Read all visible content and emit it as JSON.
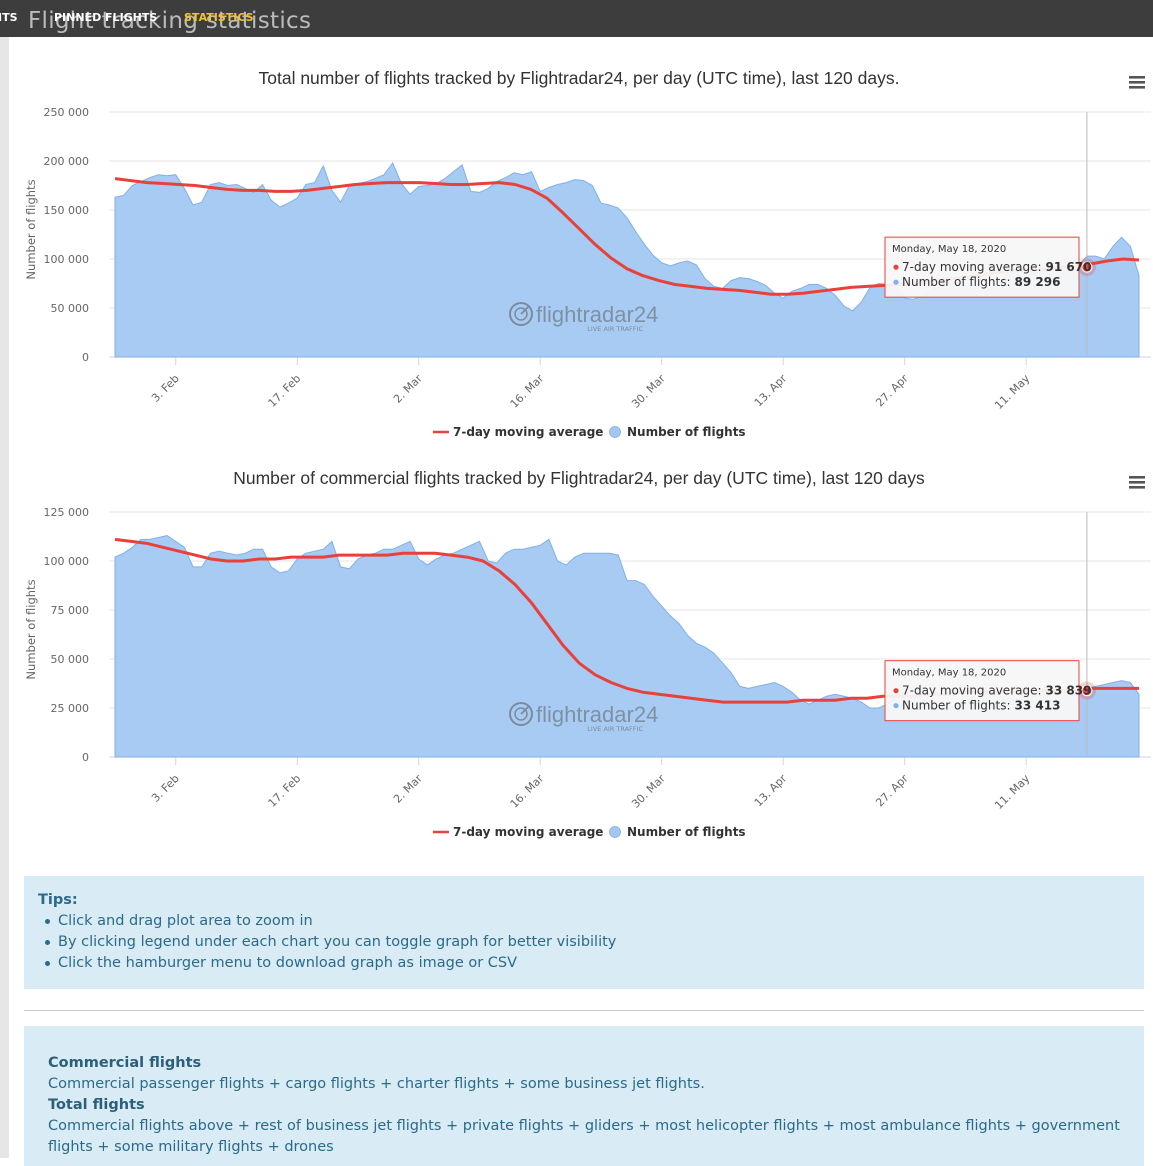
{
  "nav": {
    "left_cut": "ITS",
    "pinned": "PINNED FLIGHTS",
    "statistics": "STATISTICS"
  },
  "page_title": "Flight tracking statistics",
  "watermark": {
    "brand": "flightradar24",
    "tagline": "LIVE AIR TRAFFIC"
  },
  "chart_data": [
    {
      "type": "area",
      "title": "Total number of flights tracked by Flightradar24, per day (UTC time), last 120 days.",
      "ylabel": "Number of flights",
      "ylim": [
        0,
        250000
      ],
      "yticks": [
        0,
        50000,
        100000,
        150000,
        200000,
        250000
      ],
      "ytick_labels": [
        "0",
        "50 000",
        "100 000",
        "150 000",
        "200 000",
        "250 000"
      ],
      "x_range_days": [
        0,
        118
      ],
      "xtick_days": [
        7,
        21,
        35,
        49,
        63,
        77,
        91,
        105
      ],
      "xtick_labels": [
        "3. Feb",
        "17. Feb",
        "2. Mar",
        "16. Mar",
        "30. Mar",
        "13. Apr",
        "27. Apr",
        "11. May"
      ],
      "legend": [
        "7-day moving average",
        "Number of flights"
      ],
      "legend_position": "bottom-center",
      "colors": {
        "area": "#a8cbf3",
        "area_line": "#7fb0ea",
        "average": "#e8413a"
      },
      "series": [
        {
          "name": "Number of flights",
          "values": [
            163000,
            165000,
            175000,
            179000,
            183000,
            186000,
            185000,
            186000,
            172000,
            155000,
            158000,
            176000,
            178000,
            175000,
            176000,
            172000,
            168000,
            176000,
            160000,
            153000,
            157000,
            162000,
            176000,
            178000,
            195000,
            170000,
            158000,
            175000,
            177000,
            179000,
            182000,
            186000,
            198000,
            177000,
            166000,
            174000,
            175000,
            177000,
            182000,
            189000,
            196000,
            169000,
            168000,
            172000,
            179000,
            183000,
            188000,
            186000,
            189000,
            169000,
            173000,
            176000,
            178000,
            181000,
            180000,
            175000,
            157000,
            155000,
            152000,
            142000,
            128000,
            115000,
            104000,
            96000,
            93000,
            96000,
            98000,
            94000,
            80000,
            72000,
            70000,
            78000,
            81000,
            80000,
            77000,
            73000,
            65000,
            60000,
            67000,
            70000,
            74000,
            74000,
            70000,
            63000,
            52000,
            47000,
            56000,
            71000,
            75000,
            74000,
            72000,
            60000,
            59000,
            62000,
            67000,
            73000,
            75000,
            76000,
            73000,
            73000,
            72000,
            76000,
            78000,
            86000,
            88000,
            89000,
            86000,
            88000,
            90000,
            93000,
            91000,
            93000,
            103000,
            103000,
            100000,
            113000,
            122000,
            113000,
            83000
          ]
        },
        {
          "name": "7-day moving average",
          "values": [
            182000,
            180000,
            178000,
            177000,
            176000,
            175000,
            173000,
            171000,
            170000,
            170000,
            169000,
            169000,
            170000,
            172000,
            174000,
            176000,
            177000,
            178000,
            178000,
            178000,
            177000,
            176000,
            176000,
            177000,
            178000,
            176000,
            171000,
            162000,
            147000,
            131000,
            115000,
            101000,
            90000,
            83000,
            78000,
            74000,
            72000,
            70000,
            69000,
            68000,
            66000,
            64000,
            64000,
            65000,
            67000,
            69000,
            71000,
            72000,
            73000,
            74000,
            75000,
            77000,
            79000,
            81000,
            83000,
            86000,
            88000,
            89000,
            90000,
            91000,
            92000,
            95000,
            98000,
            100000,
            99000
          ]
        }
      ],
      "tooltip": {
        "date": "Monday, May 18, 2020",
        "avg_label": "7-day moving average:",
        "avg_value": "91 670",
        "flights_label": "Number of flights:",
        "flights_value": "89 296"
      }
    },
    {
      "type": "area",
      "title": "Number of commercial flights tracked by Flightradar24, per day (UTC time), last 120 days",
      "ylabel": "Number of flights",
      "ylim": [
        0,
        125000
      ],
      "yticks": [
        0,
        25000,
        50000,
        75000,
        100000,
        125000
      ],
      "ytick_labels": [
        "0",
        "25 000",
        "50 000",
        "75 000",
        "100 000",
        "125 000"
      ],
      "x_range_days": [
        0,
        118
      ],
      "xtick_days": [
        7,
        21,
        35,
        49,
        63,
        77,
        91,
        105
      ],
      "xtick_labels": [
        "3. Feb",
        "17. Feb",
        "2. Mar",
        "16. Mar",
        "30. Mar",
        "13. Apr",
        "27. Apr",
        "11. May"
      ],
      "legend": [
        "7-day moving average",
        "Number of flights"
      ],
      "legend_position": "bottom-center",
      "colors": {
        "area": "#a8cbf3",
        "area_line": "#7fb0ea",
        "average": "#e8413a"
      },
      "series": [
        {
          "name": "Number of flights",
          "values": [
            102000,
            104000,
            107000,
            111000,
            111000,
            112000,
            113000,
            110000,
            107000,
            97000,
            97000,
            104000,
            105000,
            104000,
            103000,
            104000,
            106000,
            106000,
            97000,
            94000,
            95000,
            101000,
            104000,
            105000,
            106000,
            110000,
            97000,
            96000,
            101000,
            103000,
            104000,
            106000,
            106000,
            108000,
            110000,
            101000,
            98000,
            101000,
            103000,
            104000,
            106000,
            108000,
            110000,
            100000,
            99000,
            104000,
            106000,
            106000,
            107000,
            108000,
            111000,
            100000,
            98000,
            102000,
            104000,
            104000,
            104000,
            104000,
            103000,
            90000,
            90000,
            88000,
            82000,
            77000,
            72000,
            68000,
            62000,
            58000,
            56000,
            53000,
            48000,
            43000,
            36000,
            35000,
            36000,
            37000,
            38000,
            36000,
            33000,
            29000,
            27000,
            29000,
            31000,
            32000,
            31000,
            30000,
            28000,
            25000,
            25000,
            27000,
            31000,
            31000,
            30000,
            30000,
            27000,
            25000,
            25000,
            27000,
            29000,
            31000,
            32000,
            32000,
            31000,
            30000,
            29000,
            30000,
            31000,
            33000,
            34000,
            34000,
            33000,
            33000,
            35000,
            36000,
            37000,
            38000,
            39000,
            38000,
            32000
          ]
        },
        {
          "name": "7-day moving average",
          "values": [
            111000,
            110000,
            109000,
            107000,
            105000,
            103000,
            101000,
            100000,
            100000,
            101000,
            101000,
            102000,
            102000,
            102000,
            103000,
            103000,
            103000,
            103000,
            104000,
            104000,
            104000,
            103000,
            102000,
            100000,
            95000,
            88000,
            79000,
            68000,
            57000,
            48000,
            42000,
            38000,
            35000,
            33000,
            32000,
            31000,
            30000,
            29000,
            28000,
            28000,
            28000,
            28000,
            28000,
            29000,
            29000,
            29000,
            30000,
            30000,
            31000,
            31000,
            31000,
            32000,
            32000,
            33000,
            33000,
            33000,
            33000,
            34000,
            34000,
            34000,
            34000,
            35000,
            35000,
            35000,
            35000
          ]
        }
      ],
      "tooltip": {
        "date": "Monday, May 18, 2020",
        "avg_label": "7-day moving average:",
        "avg_value": "33 839",
        "flights_label": "Number of flights:",
        "flights_value": "33 413"
      }
    }
  ],
  "tips": {
    "title": "Tips:",
    "items": [
      "Click and drag plot area to zoom in",
      "By clicking legend under each chart you can toggle graph for better visibility",
      "Click the hamburger menu to download graph as image or CSV"
    ]
  },
  "definitions": {
    "commercial_title": "Commercial flights",
    "commercial_text": "Commercial passenger flights + cargo flights + charter flights + some business jet flights.",
    "total_title": "Total flights",
    "total_text": "Commercial flights above + rest of business jet flights + private flights + gliders + most helicopter flights + most ambulance flights + government flights + some military flights + drones"
  }
}
